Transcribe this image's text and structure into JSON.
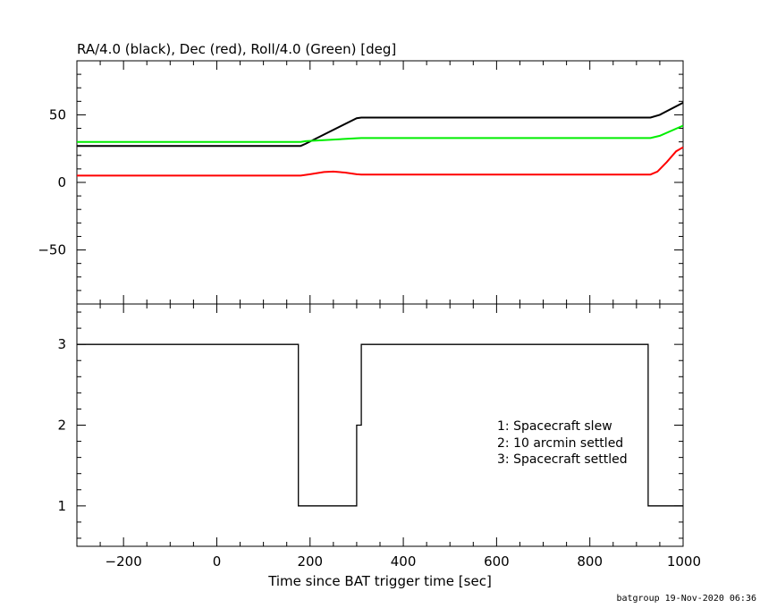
{
  "chart_data": [
    {
      "type": "line",
      "title": "RA/4.0 (black), Dec (red), Roll/4.0 (Green) [deg]",
      "xlim": [
        -300,
        1000
      ],
      "ylim": [
        -90,
        90
      ],
      "yticks": [
        -50,
        0,
        50
      ],
      "ytick_labels": [
        "−50",
        "0",
        "50"
      ],
      "grid": false,
      "series": [
        {
          "name": "RA/4.0",
          "color": "#000000",
          "x": [
            -300,
            180,
            190,
            300,
            310,
            930,
            950,
            1000
          ],
          "y": [
            27,
            27,
            28.5,
            47.5,
            48,
            48,
            50,
            59
          ]
        },
        {
          "name": "Roll/4.0",
          "color": "#00ee00",
          "x": [
            -300,
            180,
            190,
            300,
            310,
            930,
            950,
            1000
          ],
          "y": [
            30,
            30,
            30.5,
            32.7,
            32.8,
            32.8,
            34.5,
            42
          ]
        },
        {
          "name": "Dec",
          "color": "#ff0000",
          "x": [
            -300,
            180,
            200,
            230,
            250,
            275,
            300,
            310,
            930,
            945,
            965,
            985,
            1000
          ],
          "y": [
            5,
            5,
            6,
            7.7,
            8,
            7.3,
            6,
            5.8,
            5.8,
            8,
            15,
            23,
            26
          ]
        }
      ]
    },
    {
      "type": "line",
      "xlabel": "Time since BAT trigger time [sec]",
      "xlim": [
        -300,
        1000
      ],
      "ylim": [
        0.5,
        3.5
      ],
      "xticks": [
        -200,
        0,
        200,
        400,
        600,
        800,
        1000
      ],
      "xtick_labels": [
        "−200",
        "0",
        "200",
        "400",
        "600",
        "800",
        "1000"
      ],
      "yticks": [
        1,
        2,
        3
      ],
      "ytick_labels": [
        "1",
        "2",
        "3"
      ],
      "grid": false,
      "series": [
        {
          "color": "#000000",
          "x": [
            -300,
            175,
            175,
            300,
            300,
            310,
            310,
            925,
            925,
            1000
          ],
          "y": [
            3,
            3,
            1,
            1,
            2,
            2,
            3,
            3,
            1,
            1
          ]
        }
      ],
      "legend_lines": [
        "1: Spacecraft slew",
        "2: 10 arcmin settled",
        "3: Spacecraft settled"
      ]
    }
  ],
  "footer": "batgroup 19-Nov-2020 06:36"
}
